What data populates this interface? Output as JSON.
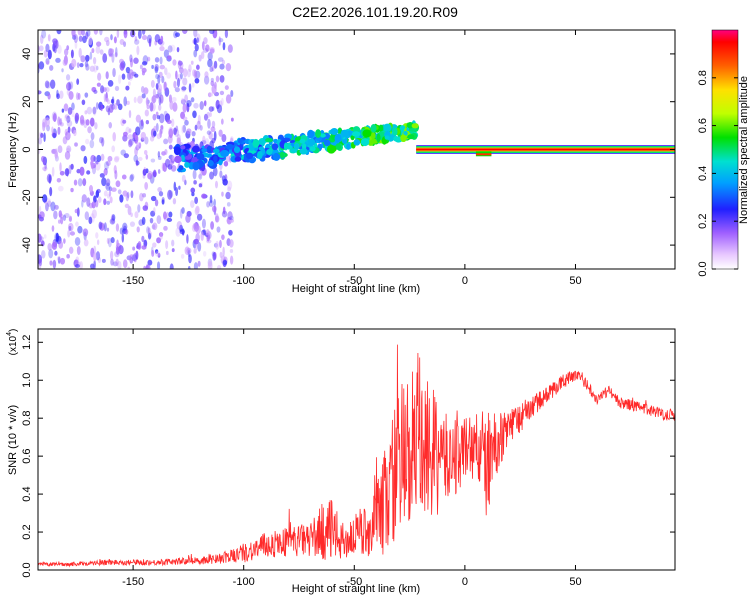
{
  "title": "C2E2.2026.101.19.20.R09",
  "colors": {
    "background": "#ffffff",
    "axis": "#000000",
    "snr_line": "#ff2a2a",
    "spectrogram_low": "#b070ff",
    "spectrogram_mid": "#00c8d0",
    "spectrogram_high": "#ff0000"
  },
  "chart_data": [
    {
      "id": "spectrogram",
      "type": "heatmap",
      "xlabel": "Height of straight line (km)",
      "ylabel": "Frequency (Hz)",
      "xlim": [
        -193,
        95
      ],
      "ylim": [
        -50,
        50
      ],
      "xticks": [
        -150,
        -100,
        -50,
        0,
        50
      ],
      "xtick_labels": [
        "-150",
        "-100",
        "-50",
        "0",
        "50"
      ],
      "yticks": [
        -40,
        -20,
        0,
        20,
        40
      ],
      "ytick_labels": [
        "-40",
        "-20",
        "0",
        "20",
        "40"
      ],
      "features": [
        {
          "name": "noisy-region",
          "x_range": [
            -193,
            -105
          ],
          "frequency_spread_hz": 50,
          "amplitude": 0.2
        },
        {
          "name": "rising-trace",
          "x_start": -130,
          "x_end": -22,
          "freq_start_hz": -4,
          "freq_end_hz": 8,
          "amplitude": 0.45
        },
        {
          "name": "steady-line",
          "x_start": -22,
          "x_end": 95,
          "freq_hz": 0,
          "amplitude": 0.95
        },
        {
          "name": "dip",
          "x_start": 5,
          "x_end": 12,
          "freq_hz": -2,
          "amplitude": 0.9
        }
      ],
      "colorbar": {
        "label": "Normalized spectral amplitude",
        "range": [
          0,
          1
        ],
        "ticks": [
          0.0,
          0.2,
          0.4,
          0.6,
          0.8
        ],
        "tick_labels": [
          "0.0",
          "0.2",
          "0.4",
          "0.6",
          "0.8"
        ]
      }
    },
    {
      "id": "snr",
      "type": "line",
      "xlabel": "Height of straight line (km)",
      "ylabel": "SNR (10 * v/v)",
      "scale_label": "(x10",
      "scale_exponent": "4",
      "scale_suffix": ")",
      "xlim": [
        -193,
        95
      ],
      "ylim": [
        0,
        1.27
      ],
      "xticks": [
        -150,
        -100,
        -50,
        0,
        50
      ],
      "xtick_labels": [
        "-150",
        "-100",
        "-50",
        "0",
        "50"
      ],
      "yticks": [
        0.0,
        0.2,
        0.4,
        0.6,
        0.8,
        1.0,
        1.2
      ],
      "ytick_labels": [
        "0.0",
        "0.2",
        "0.4",
        "0.6",
        "0.8",
        "1.0",
        "1.2"
      ],
      "series": [
        {
          "name": "SNR",
          "x": [
            -193,
            -180,
            -160,
            -140,
            -120,
            -110,
            -100,
            -90,
            -80,
            -70,
            -62,
            -55,
            -48,
            -42,
            -38,
            -34,
            -30,
            -26,
            -22,
            -18,
            -14,
            -10,
            -5,
            0,
            5,
            10,
            15,
            20,
            25,
            30,
            35,
            40,
            45,
            50,
            55,
            60,
            65,
            70,
            75,
            80,
            85,
            90,
            95
          ],
          "values": [
            0.03,
            0.03,
            0.04,
            0.04,
            0.05,
            0.06,
            0.09,
            0.13,
            0.15,
            0.16,
            0.22,
            0.15,
            0.19,
            0.22,
            0.3,
            0.45,
            0.55,
            0.6,
            0.65,
            0.63,
            0.6,
            0.58,
            0.6,
            0.63,
            0.66,
            0.55,
            0.68,
            0.75,
            0.8,
            0.86,
            0.9,
            0.95,
            1.0,
            1.03,
            0.98,
            0.9,
            0.95,
            0.88,
            0.87,
            0.85,
            0.84,
            0.82,
            0.82
          ],
          "spike_amplitude": [
            0.01,
            0.01,
            0.015,
            0.015,
            0.02,
            0.03,
            0.05,
            0.07,
            0.08,
            0.09,
            0.18,
            0.1,
            0.12,
            0.15,
            0.25,
            0.35,
            0.4,
            0.45,
            0.55,
            0.4,
            0.35,
            0.25,
            0.22,
            0.2,
            0.18,
            0.3,
            0.15,
            0.1,
            0.08,
            0.06,
            0.05,
            0.04,
            0.04,
            0.03,
            0.03,
            0.03,
            0.03,
            0.03,
            0.03,
            0.03,
            0.03,
            0.03,
            0.03
          ]
        }
      ]
    }
  ]
}
